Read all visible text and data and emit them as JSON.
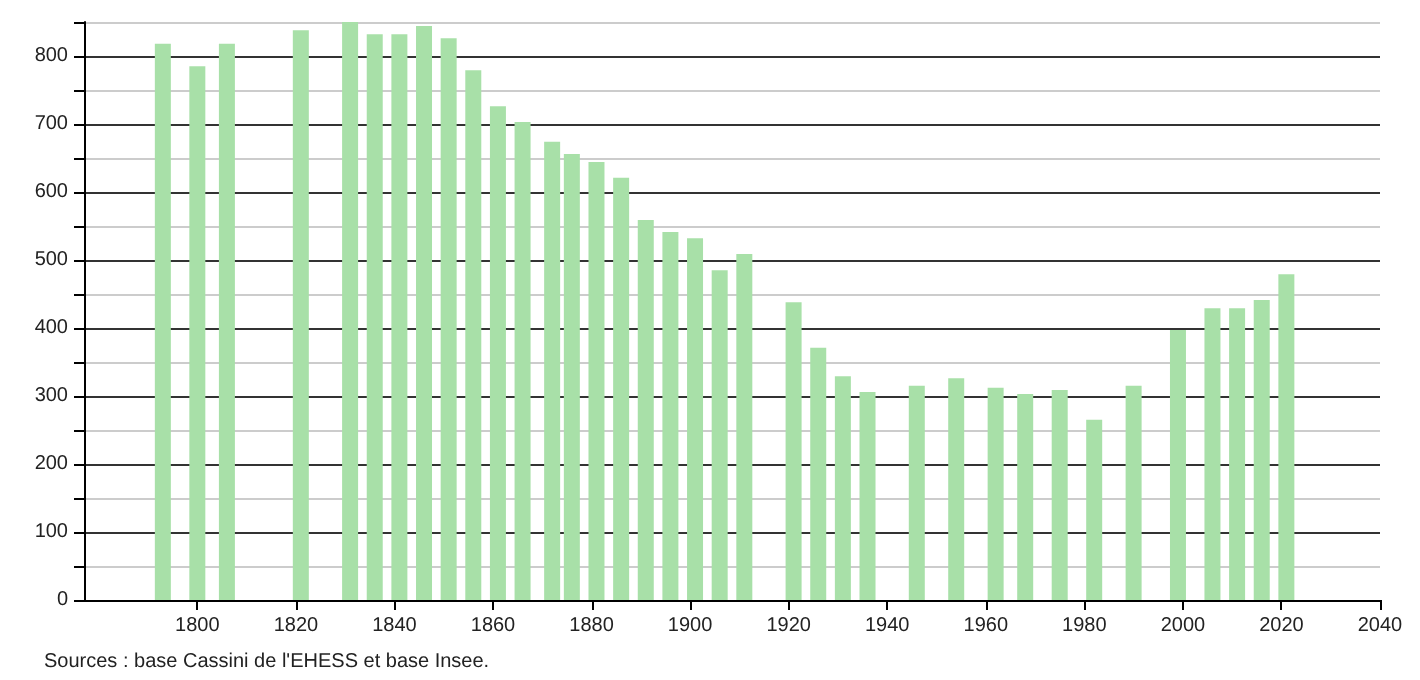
{
  "chart_data": {
    "type": "bar",
    "x": [
      1793,
      1800,
      1806,
      1821,
      1831,
      1836,
      1841,
      1846,
      1851,
      1856,
      1861,
      1866,
      1872,
      1876,
      1881,
      1886,
      1891,
      1896,
      1901,
      1906,
      1911,
      1921,
      1926,
      1931,
      1936,
      1946,
      1954,
      1962,
      1968,
      1975,
      1982,
      1990,
      1999,
      2006,
      2011,
      2016,
      2021
    ],
    "values": [
      818,
      785,
      818,
      838,
      850,
      832,
      832,
      844,
      826,
      779,
      726,
      703,
      674,
      656,
      644,
      621,
      559,
      541,
      532,
      485,
      509,
      438,
      371,
      329,
      306,
      315,
      326,
      312,
      303,
      309,
      265,
      315,
      397,
      429,
      429,
      441,
      479
    ],
    "color": "#a8e0a8",
    "xlim": [
      1777,
      2040
    ],
    "xticks": [
      1800,
      1820,
      1840,
      1860,
      1880,
      1900,
      1920,
      1940,
      1960,
      1980,
      2000,
      2020,
      2040
    ],
    "ylim": [
      0,
      850
    ],
    "yticks": [
      0,
      {
        "value": 50,
        "label": null
      },
      100,
      {
        "value": 150,
        "label": null
      },
      200,
      {
        "value": 250,
        "label": null
      },
      300,
      {
        "value": 350,
        "label": null
      },
      400,
      {
        "value": 450,
        "label": null
      },
      500,
      {
        "value": 550,
        "label": null
      },
      600,
      {
        "value": 650,
        "label": null
      },
      700,
      {
        "value": 750,
        "label": null
      },
      800,
      {
        "value": 850,
        "label": null
      }
    ],
    "grid": "y",
    "annotations": [
      "Sources : base Cassini de l'EHESS et base Insee."
    ]
  }
}
